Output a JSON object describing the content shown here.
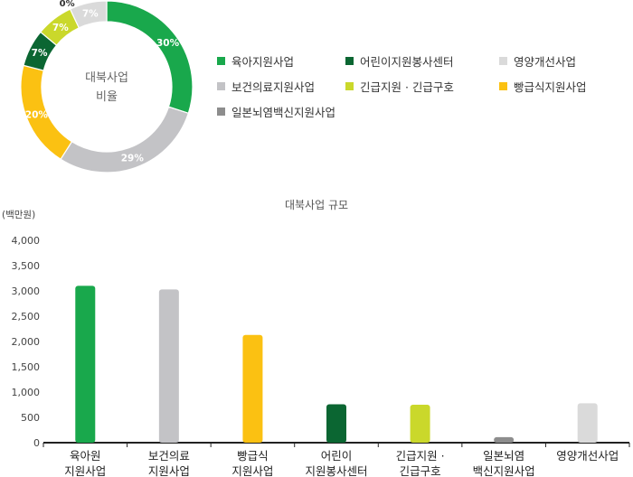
{
  "colors": {
    "yuga": "#19a84c",
    "bogeon": "#c3c3c6",
    "ppang": "#fbc112",
    "eorini": "#0b6632",
    "ginkeup": "#cad82b",
    "ilbon": "#8d8d8d",
    "yeongyang": "#dadada",
    "axis": "#222222"
  },
  "chart_data": [
    {
      "type": "pie",
      "donut": true,
      "center_label": [
        "대북사업",
        "비율"
      ],
      "slices": [
        {
          "key": "yuga",
          "label": "육아지원사업",
          "value": 30,
          "display": "30%"
        },
        {
          "key": "bogeon",
          "label": "보건의료지원사업",
          "value": 29,
          "display": "29%"
        },
        {
          "key": "ppang",
          "label": "빵급식지원사업",
          "value": 20,
          "display": "20%"
        },
        {
          "key": "eorini",
          "label": "어린이지원봉사센터",
          "value": 7,
          "display": "7%"
        },
        {
          "key": "ginkeup",
          "label": "긴급지원 · 긴급구호",
          "value": 7,
          "display": "7%"
        },
        {
          "key": "ilbon",
          "label": "일본뇌염백신지원사업",
          "value": 0,
          "display": "0%"
        },
        {
          "key": "yeongyang",
          "label": "영양개선사업",
          "value": 7,
          "display": "7%"
        }
      ],
      "legend": {
        "placement": "right",
        "order": [
          "yuga",
          "eorini",
          "yeongyang",
          "bogeon",
          "ginkeup",
          "ppang",
          "ilbon"
        ]
      }
    },
    {
      "type": "bar",
      "title": "대북사업 규모",
      "ylabel": "(백만원)",
      "ylim": [
        0,
        4000
      ],
      "yticks": [
        0,
        500,
        1000,
        1500,
        2000,
        2500,
        3000,
        3500,
        4000
      ],
      "ytick_labels": [
        "0",
        "500",
        "1,000",
        "1,500",
        "2,000",
        "2,500",
        "3,000",
        "3,500",
        "4,000"
      ],
      "grid": false,
      "categories": [
        {
          "key": "yuga",
          "lines": [
            "육아원",
            "지원사업"
          ]
        },
        {
          "key": "bogeon",
          "lines": [
            "보건의료",
            "지원사업"
          ]
        },
        {
          "key": "ppang",
          "lines": [
            "빵급식",
            "지원사업"
          ]
        },
        {
          "key": "eorini",
          "lines": [
            "어린이",
            "지원봉사센터"
          ]
        },
        {
          "key": "ginkeup",
          "lines": [
            "긴급지원 ·",
            "긴급구호"
          ]
        },
        {
          "key": "ilbon",
          "lines": [
            "일본뇌염",
            "백신지원사업"
          ]
        },
        {
          "key": "yeongyang",
          "lines": [
            "영양개선사업"
          ]
        }
      ],
      "values": [
        3100,
        3030,
        2130,
        760,
        750,
        110,
        780
      ]
    }
  ]
}
